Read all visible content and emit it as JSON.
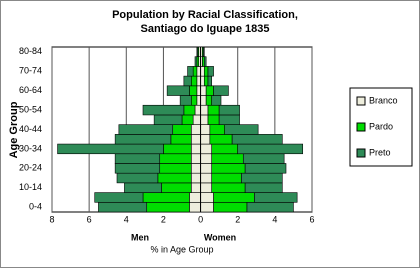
{
  "chart_data": {
    "type": "pyramid",
    "title": "Population by Racial Classification,",
    "subtitle": "Santiago do Iguape 1835",
    "y_label": "Age Group",
    "x_label": "% in Age Group",
    "left_label": "Men",
    "right_label": "Women",
    "categories": [
      "0-4",
      null,
      "10-14",
      null,
      "20-24",
      null,
      "30-34",
      null,
      "40-44",
      null,
      "50-54",
      null,
      "60-64",
      null,
      "70-74",
      null,
      "80-84"
    ],
    "series": [
      {
        "name": "Branco",
        "color": "#eeeedd",
        "men": [
          0.6,
          0.6,
          0.5,
          0.5,
          0.5,
          0.5,
          0.5,
          0.5,
          0.5,
          0.4,
          0.3,
          0.2,
          0.2,
          0.2,
          0.2,
          0.1,
          0.1
        ],
        "women": [
          0.7,
          0.7,
          0.6,
          0.6,
          0.6,
          0.6,
          0.6,
          0.5,
          0.5,
          0.4,
          0.4,
          0.3,
          0.3,
          0.2,
          0.2,
          0.1,
          0.1
        ]
      },
      {
        "name": "Pardo",
        "color": "#00dd00",
        "men": [
          2.3,
          2.5,
          1.6,
          1.8,
          1.7,
          1.7,
          1.5,
          1.1,
          1.0,
          0.6,
          0.6,
          0.3,
          0.4,
          0.3,
          0.2,
          0.1,
          0.05
        ],
        "women": [
          1.8,
          2.2,
          1.8,
          1.6,
          1.8,
          1.7,
          1.4,
          1.2,
          0.8,
          0.6,
          0.6,
          0.3,
          0.4,
          0.2,
          0.2,
          0.1,
          0.05
        ]
      },
      {
        "name": "Preto",
        "color": "#2e8b57",
        "men": [
          2.6,
          2.6,
          2.0,
          2.2,
          2.4,
          2.4,
          5.7,
          3.0,
          2.9,
          1.5,
          2.2,
          0.6,
          1.2,
          0.4,
          0.3,
          0.1,
          0.05
        ],
        "women": [
          2.5,
          2.3,
          2.0,
          2.2,
          2.2,
          2.2,
          3.5,
          2.7,
          1.8,
          1.1,
          1.1,
          0.5,
          0.8,
          0.2,
          0.3,
          0.1,
          0.05
        ]
      }
    ],
    "xlim": [
      -8,
      6
    ],
    "xticks": [
      {
        "value": -8,
        "label": "8"
      },
      {
        "value": -6,
        "label": "6"
      },
      {
        "value": -4,
        "label": "4"
      },
      {
        "value": -2,
        "label": "2"
      },
      0,
      2,
      4,
      6
    ],
    "grid": true,
    "legend": "right"
  }
}
